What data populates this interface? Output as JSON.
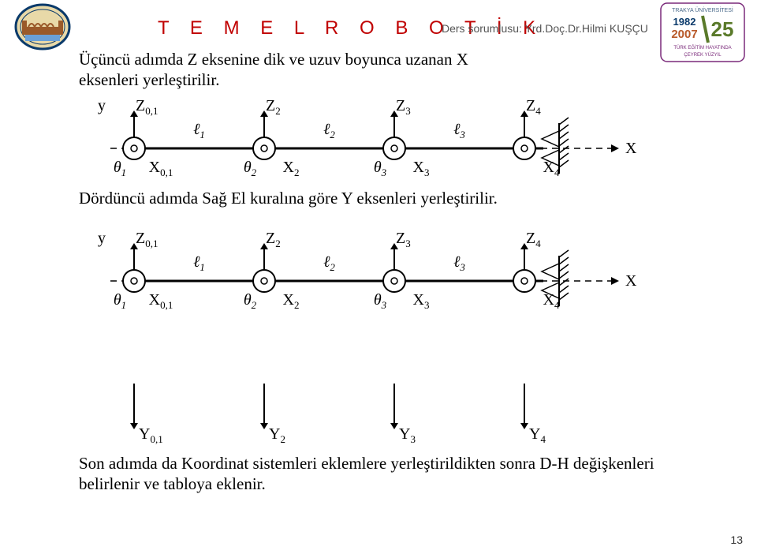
{
  "header": {
    "title": "T E M E L  R O B O T İ K",
    "subtitle": "Ders sorumlusu: Yrd.Doç.Dr.Hilmi KUŞÇU"
  },
  "paragraphs": {
    "p1": "Üçüncü adımda Z eksenine dik ve uzuv boyunca uzanan X eksenleri yerleştirilir.",
    "p2": "Dördüncü adımda Sağ El kuralına göre Y eksenleri yerleştirilir.",
    "p3": "Son adımda da Koordinat sistemleri eklemlere yerleştirildikten sonra D-H değişkenleri belirlenir ve tabloya eklenir."
  },
  "page_number": "13",
  "logo_left": {
    "bg": "#e8d9a8",
    "ring": "#0a3a6b",
    "bridge": "#9a5a2a",
    "water": "#6aa0d8"
  },
  "logo_right": {
    "frame": "#7a2a7a",
    "year_top": "1982",
    "year_mid": "2007",
    "num": "25",
    "green": "#3aa04a",
    "text1": "TRAKYA ÜNİVERSİTESİ",
    "text2": "TÜRK EĞİTİM HAYATINDA",
    "text3": "ÇEYREK YÜZYIL",
    "num_color": "#5a7a2a",
    "year_mid_color": "#b85a2a"
  },
  "diagram": {
    "y_label": "y",
    "x_label": "X",
    "joints": [
      {
        "z": "Z",
        "zsub": "0,1",
        "l": "",
        "theta": "θ",
        "tsub": "1",
        "x": "X",
        "xsub": "0,1",
        "yb": "Y",
        "ybsub": "0,1"
      },
      {
        "z": "Z",
        "zsub": "2",
        "l": "ℓ",
        "lsub": "1",
        "theta": "θ",
        "tsub": "2",
        "x": "X",
        "xsub": "2",
        "yb": "Y",
        "ybsub": "2"
      },
      {
        "z": "Z",
        "zsub": "3",
        "l": "ℓ",
        "lsub": "2",
        "theta": "θ",
        "tsub": "3",
        "x": "X",
        "xsub": "3",
        "yb": "Y",
        "ybsub": "3"
      },
      {
        "z": "Z",
        "zsub": "4",
        "l": "ℓ",
        "lsub": "3",
        "theta": "",
        "tsub": "",
        "x": "X",
        "xsub": "4",
        "yb": "Y",
        "ybsub": "4"
      }
    ],
    "colors": {
      "stroke": "#000000",
      "fill_bg": "#ffffff"
    }
  }
}
